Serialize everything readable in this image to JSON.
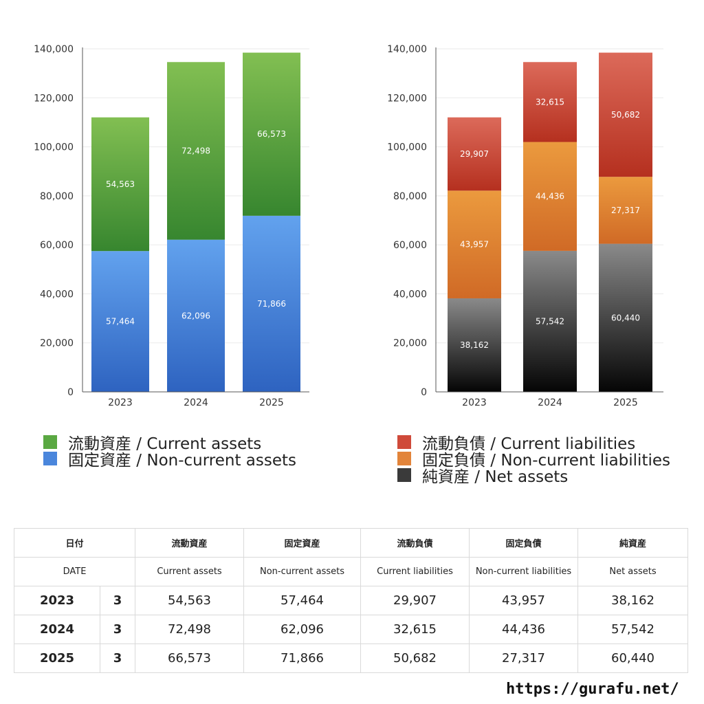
{
  "chart_data": [
    {
      "type": "bar",
      "stacked": true,
      "categories": [
        "2023",
        "2024",
        "2025"
      ],
      "ylim": [
        0,
        140000
      ],
      "yticks": [
        "0",
        "20,000",
        "40,000",
        "60,000",
        "80,000",
        "100,000",
        "120,000",
        "140,000"
      ],
      "grid": true,
      "series": [
        {
          "name": "固定資産 / Non-current assets",
          "values": [
            57464,
            62096,
            71866
          ],
          "labels": [
            "57,464",
            "62,096",
            "71,866"
          ],
          "color_top": "#62a2ee",
          "color_bottom": "#2e63c0"
        },
        {
          "name": "流動資産 / Current assets",
          "values": [
            54563,
            72498,
            66573
          ],
          "labels": [
            "54,563",
            "72,498",
            "66,573"
          ],
          "color_top": "#82bf52",
          "color_bottom": "#37862f"
        }
      ],
      "legend": [
        {
          "label": "流動資産 / Current assets",
          "color": "#5aa842"
        },
        {
          "label": "固定資産 / Non-current assets",
          "color": "#4a86dc"
        }
      ]
    },
    {
      "type": "bar",
      "stacked": true,
      "categories": [
        "2023",
        "2024",
        "2025"
      ],
      "ylim": [
        0,
        140000
      ],
      "yticks": [
        "0",
        "20,000",
        "40,000",
        "60,000",
        "80,000",
        "100,000",
        "120,000",
        "140,000"
      ],
      "grid": true,
      "series": [
        {
          "name": "純資産 / Net assets",
          "values": [
            38162,
            57542,
            60440
          ],
          "labels": [
            "38,162",
            "57,542",
            "60,440"
          ],
          "color_top": "#8a8a8a",
          "color_bottom": "#050505"
        },
        {
          "name": "固定負債 / Non-current liabilities",
          "values": [
            43957,
            44436,
            27317
          ],
          "labels": [
            "43,957",
            "44,436",
            "27,317"
          ],
          "color_top": "#eb9a3e",
          "color_bottom": "#d06a26"
        },
        {
          "name": "流動負債 / Current liabilities",
          "values": [
            29907,
            32615,
            50682
          ],
          "labels": [
            "29,907",
            "32,615",
            "50,682"
          ],
          "color_top": "#dc6a5a",
          "color_bottom": "#b5301f"
        }
      ],
      "legend": [
        {
          "label": "流動負債 / Current liabilities",
          "color": "#cf4a3a"
        },
        {
          "label": "固定負債 / Non-current liabilities",
          "color": "#e2843a"
        },
        {
          "label": "純資産 / Net assets",
          "color": "#3a3a3a"
        }
      ]
    }
  ],
  "table": {
    "header_jp": [
      "日付",
      "流動資産",
      "固定資産",
      "流動負債",
      "固定負債",
      "純資産"
    ],
    "header_en": [
      "DATE",
      "Current assets",
      "Non-current assets",
      "Current liabilities",
      "Non-current liabilities",
      "Net assets"
    ],
    "rows": [
      {
        "year": "2023",
        "month": "3",
        "cells": [
          "54,563",
          "57,464",
          "29,907",
          "43,957",
          "38,162"
        ]
      },
      {
        "year": "2024",
        "month": "3",
        "cells": [
          "72,498",
          "62,096",
          "32,615",
          "44,436",
          "57,542"
        ]
      },
      {
        "year": "2025",
        "month": "3",
        "cells": [
          "66,573",
          "71,866",
          "50,682",
          "27,317",
          "60,440"
        ]
      }
    ]
  },
  "footer": {
    "site": "https://gurafu.net/"
  }
}
